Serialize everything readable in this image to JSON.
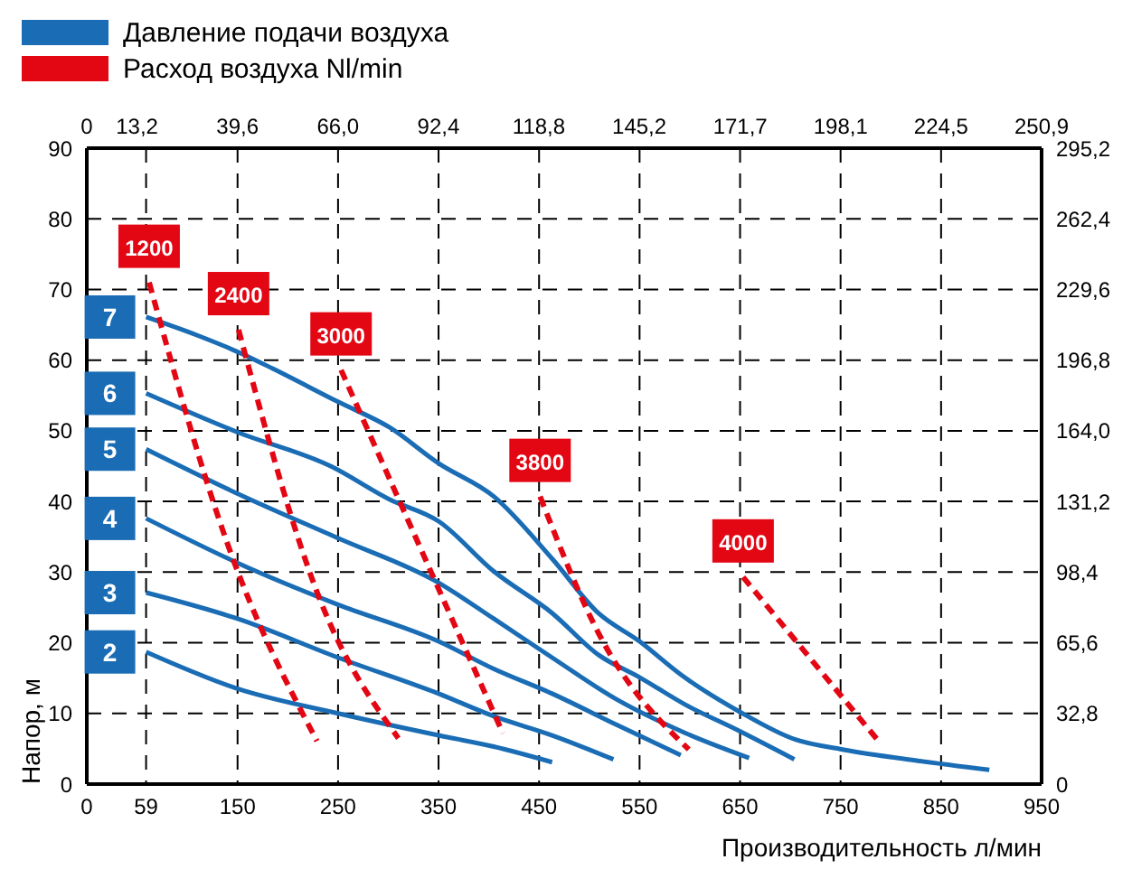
{
  "chart_data": {
    "type": "line",
    "xlabel": "Производительность л/мин",
    "ylabel": "Напор, м",
    "annotations": [
      "Давление подачи воздуха",
      "Расход воздуха Nl/min"
    ],
    "xlim": [
      0,
      950
    ],
    "xticks": [
      0,
      59,
      150,
      250,
      350,
      450,
      550,
      650,
      750,
      850,
      950
    ],
    "ylim": [
      0,
      90
    ],
    "yticks": [
      0,
      10,
      20,
      30,
      40,
      50,
      60,
      70,
      80,
      90
    ],
    "x2lim": [
      0,
      250.9
    ],
    "x2ticks": [
      0,
      {
        "value": 13.2,
        "label": "13,2"
      },
      {
        "value": 39.6,
        "label": "39,6"
      },
      {
        "value": 66.0,
        "label": "66,0"
      },
      {
        "value": 92.4,
        "label": "92,4"
      },
      {
        "value": 118.8,
        "label": "118,8"
      },
      {
        "value": 145.2,
        "label": "145,2"
      },
      {
        "value": 171.7,
        "label": "171,7"
      },
      {
        "value": 198.1,
        "label": "198,1"
      },
      {
        "value": 224.5,
        "label": "224,5"
      },
      {
        "value": 250.9,
        "label": "250,9"
      }
    ],
    "y2lim": [
      0,
      295.2
    ],
    "y2ticks": [
      0,
      {
        "value": 32.8,
        "label": "32,8"
      },
      {
        "value": 65.6,
        "label": "65,6"
      },
      {
        "value": 98.4,
        "label": "98,4"
      },
      {
        "value": 131.2,
        "label": "131,2"
      },
      {
        "value": 164.0,
        "label": "164,0"
      },
      {
        "value": 196.8,
        "label": "196,8"
      },
      {
        "value": 229.6,
        "label": "229,6"
      },
      {
        "value": 262.4,
        "label": "262,4"
      },
      {
        "value": 295.2,
        "label": "295,2"
      }
    ],
    "grid": true,
    "marker": "none",
    "legend": "left",
    "series": [
      {
        "name": "7",
        "color": "#1a6db5",
        "line_style": "solid",
        "x": [
          59,
          110,
          156,
          185,
          250,
          301,
          350,
          405,
          463,
          509,
          550,
          591,
          650,
          705,
          752,
          827,
          898
        ],
        "values": [
          66.1,
          63.5,
          60.8,
          58.8,
          54.1,
          50.5,
          45.4,
          40.7,
          31.9,
          24.2,
          20.2,
          15.5,
          10.2,
          6.3,
          4.9,
          3.3,
          2.0
        ]
      },
      {
        "name": "6",
        "color": "#1a6db5",
        "line_style": "solid",
        "x": [
          59,
          150,
          244,
          301,
          350,
          405,
          463,
          509,
          550,
          596,
          648,
          704
        ],
        "values": [
          55.3,
          49.8,
          44.9,
          40.3,
          37.2,
          30.1,
          24.2,
          18.3,
          15.1,
          11.2,
          7.6,
          3.5
        ]
      },
      {
        "name": "5",
        "color": "#1a6db5",
        "line_style": "solid",
        "x": [
          59,
          150,
          250,
          350,
          405,
          463,
          527,
          596,
          659
        ],
        "values": [
          47.4,
          41.1,
          34.8,
          28.5,
          23.4,
          17.9,
          12.0,
          7.2,
          3.7
        ]
      },
      {
        "name": "4",
        "color": "#1a6db5",
        "line_style": "solid",
        "x": [
          59,
          150,
          250,
          350,
          405,
          463,
          527,
          591
        ],
        "values": [
          37.6,
          31.3,
          25.4,
          20.2,
          16.3,
          12.8,
          8.4,
          4.1
        ]
      },
      {
        "name": "3",
        "color": "#1a6db5",
        "line_style": "solid",
        "x": [
          59,
          150,
          250,
          350,
          405,
          463,
          524
        ],
        "values": [
          27.1,
          23.4,
          17.9,
          12.8,
          9.6,
          6.9,
          3.5
        ]
      },
      {
        "name": "2",
        "color": "#1a6db5",
        "line_style": "solid",
        "x": [
          59,
          150,
          250,
          350,
          405,
          463
        ],
        "values": [
          18.7,
          13.5,
          10.0,
          6.9,
          5.3,
          3.1
        ]
      },
      {
        "name": "1200",
        "color": "#e30613",
        "line_style": "dashed",
        "x": [
          62,
          140,
          229
        ],
        "values": [
          71.0,
          34.0,
          6.1
        ]
      },
      {
        "name": "2400",
        "color": "#e30613",
        "line_style": "dashed",
        "x": [
          151,
          232,
          310
        ],
        "values": [
          64.3,
          26.1,
          6.5
        ]
      },
      {
        "name": "3000",
        "color": "#e30613",
        "line_style": "dashed",
        "x": [
          253,
          414
        ],
        "values": [
          58.6,
          7.2
        ]
      },
      {
        "name": "3800",
        "color": "#e30613",
        "line_style": "dashed",
        "x": [
          451,
          509,
          599
        ],
        "values": [
          40.7,
          21.4,
          4.9
        ]
      },
      {
        "name": "4000",
        "color": "#e30613",
        "line_style": "dashed",
        "x": [
          653,
          790
        ],
        "values": [
          29.3,
          5.7
        ]
      }
    ]
  }
}
